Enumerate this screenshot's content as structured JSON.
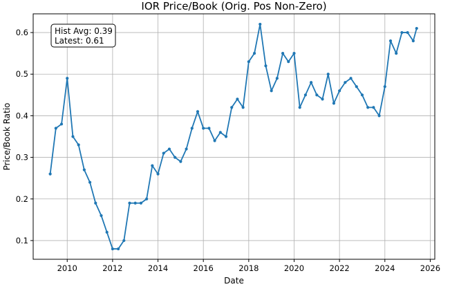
{
  "chart_data": {
    "type": "line",
    "title": "IOR Price/Book (Orig. Pos Non-Zero)",
    "xlabel": "Date",
    "ylabel": "Price/Book Ratio",
    "xlim": [
      2008.5,
      2026.2
    ],
    "ylim": [
      0.055,
      0.645
    ],
    "x_ticks": [
      2010,
      2012,
      2014,
      2016,
      2018,
      2020,
      2022,
      2024,
      2026
    ],
    "y_ticks": [
      0.1,
      0.2,
      0.3,
      0.4,
      0.5,
      0.6
    ],
    "grid": true,
    "line_color": "#1f77b4",
    "annotation": {
      "line1": "Hist Avg: 0.39",
      "line2": "Latest: 0.61",
      "placement": "top-left"
    },
    "series": [
      {
        "x": [
          2009.25,
          2009.5,
          2009.75,
          2010.0,
          2010.25,
          2010.5,
          2010.75,
          2011.0,
          2011.25,
          2011.5,
          2011.75,
          2012.0,
          2012.25,
          2012.5,
          2012.75,
          2013.0,
          2013.25,
          2013.5,
          2013.75,
          2014.0,
          2014.25,
          2014.5,
          2014.75,
          2015.0,
          2015.25,
          2015.5,
          2015.75,
          2016.0,
          2016.25,
          2016.5,
          2016.75,
          2017.0,
          2017.25,
          2017.5,
          2017.75,
          2018.0,
          2018.25,
          2018.5,
          2018.75,
          2019.0,
          2019.25,
          2019.5,
          2019.75,
          2020.0,
          2020.25,
          2020.5,
          2020.75,
          2021.0,
          2021.25,
          2021.5,
          2021.75,
          2022.0,
          2022.25,
          2022.5,
          2022.75,
          2023.0,
          2023.25,
          2023.5,
          2023.75,
          2024.0,
          2024.25,
          2024.5,
          2024.75,
          2025.0,
          2025.25,
          2025.4
        ],
        "values": [
          0.26,
          0.37,
          0.38,
          0.49,
          0.35,
          0.33,
          0.27,
          0.24,
          0.19,
          0.16,
          0.12,
          0.08,
          0.08,
          0.1,
          0.19,
          0.19,
          0.19,
          0.2,
          0.28,
          0.26,
          0.31,
          0.32,
          0.3,
          0.29,
          0.32,
          0.37,
          0.41,
          0.37,
          0.37,
          0.34,
          0.36,
          0.35,
          0.42,
          0.44,
          0.42,
          0.53,
          0.55,
          0.62,
          0.52,
          0.46,
          0.49,
          0.55,
          0.53,
          0.55,
          0.42,
          0.45,
          0.48,
          0.45,
          0.44,
          0.5,
          0.43,
          0.46,
          0.48,
          0.49,
          0.47,
          0.45,
          0.42,
          0.42,
          0.4,
          0.47,
          0.58,
          0.55,
          0.6,
          0.6,
          0.58,
          0.61
        ]
      }
    ]
  }
}
